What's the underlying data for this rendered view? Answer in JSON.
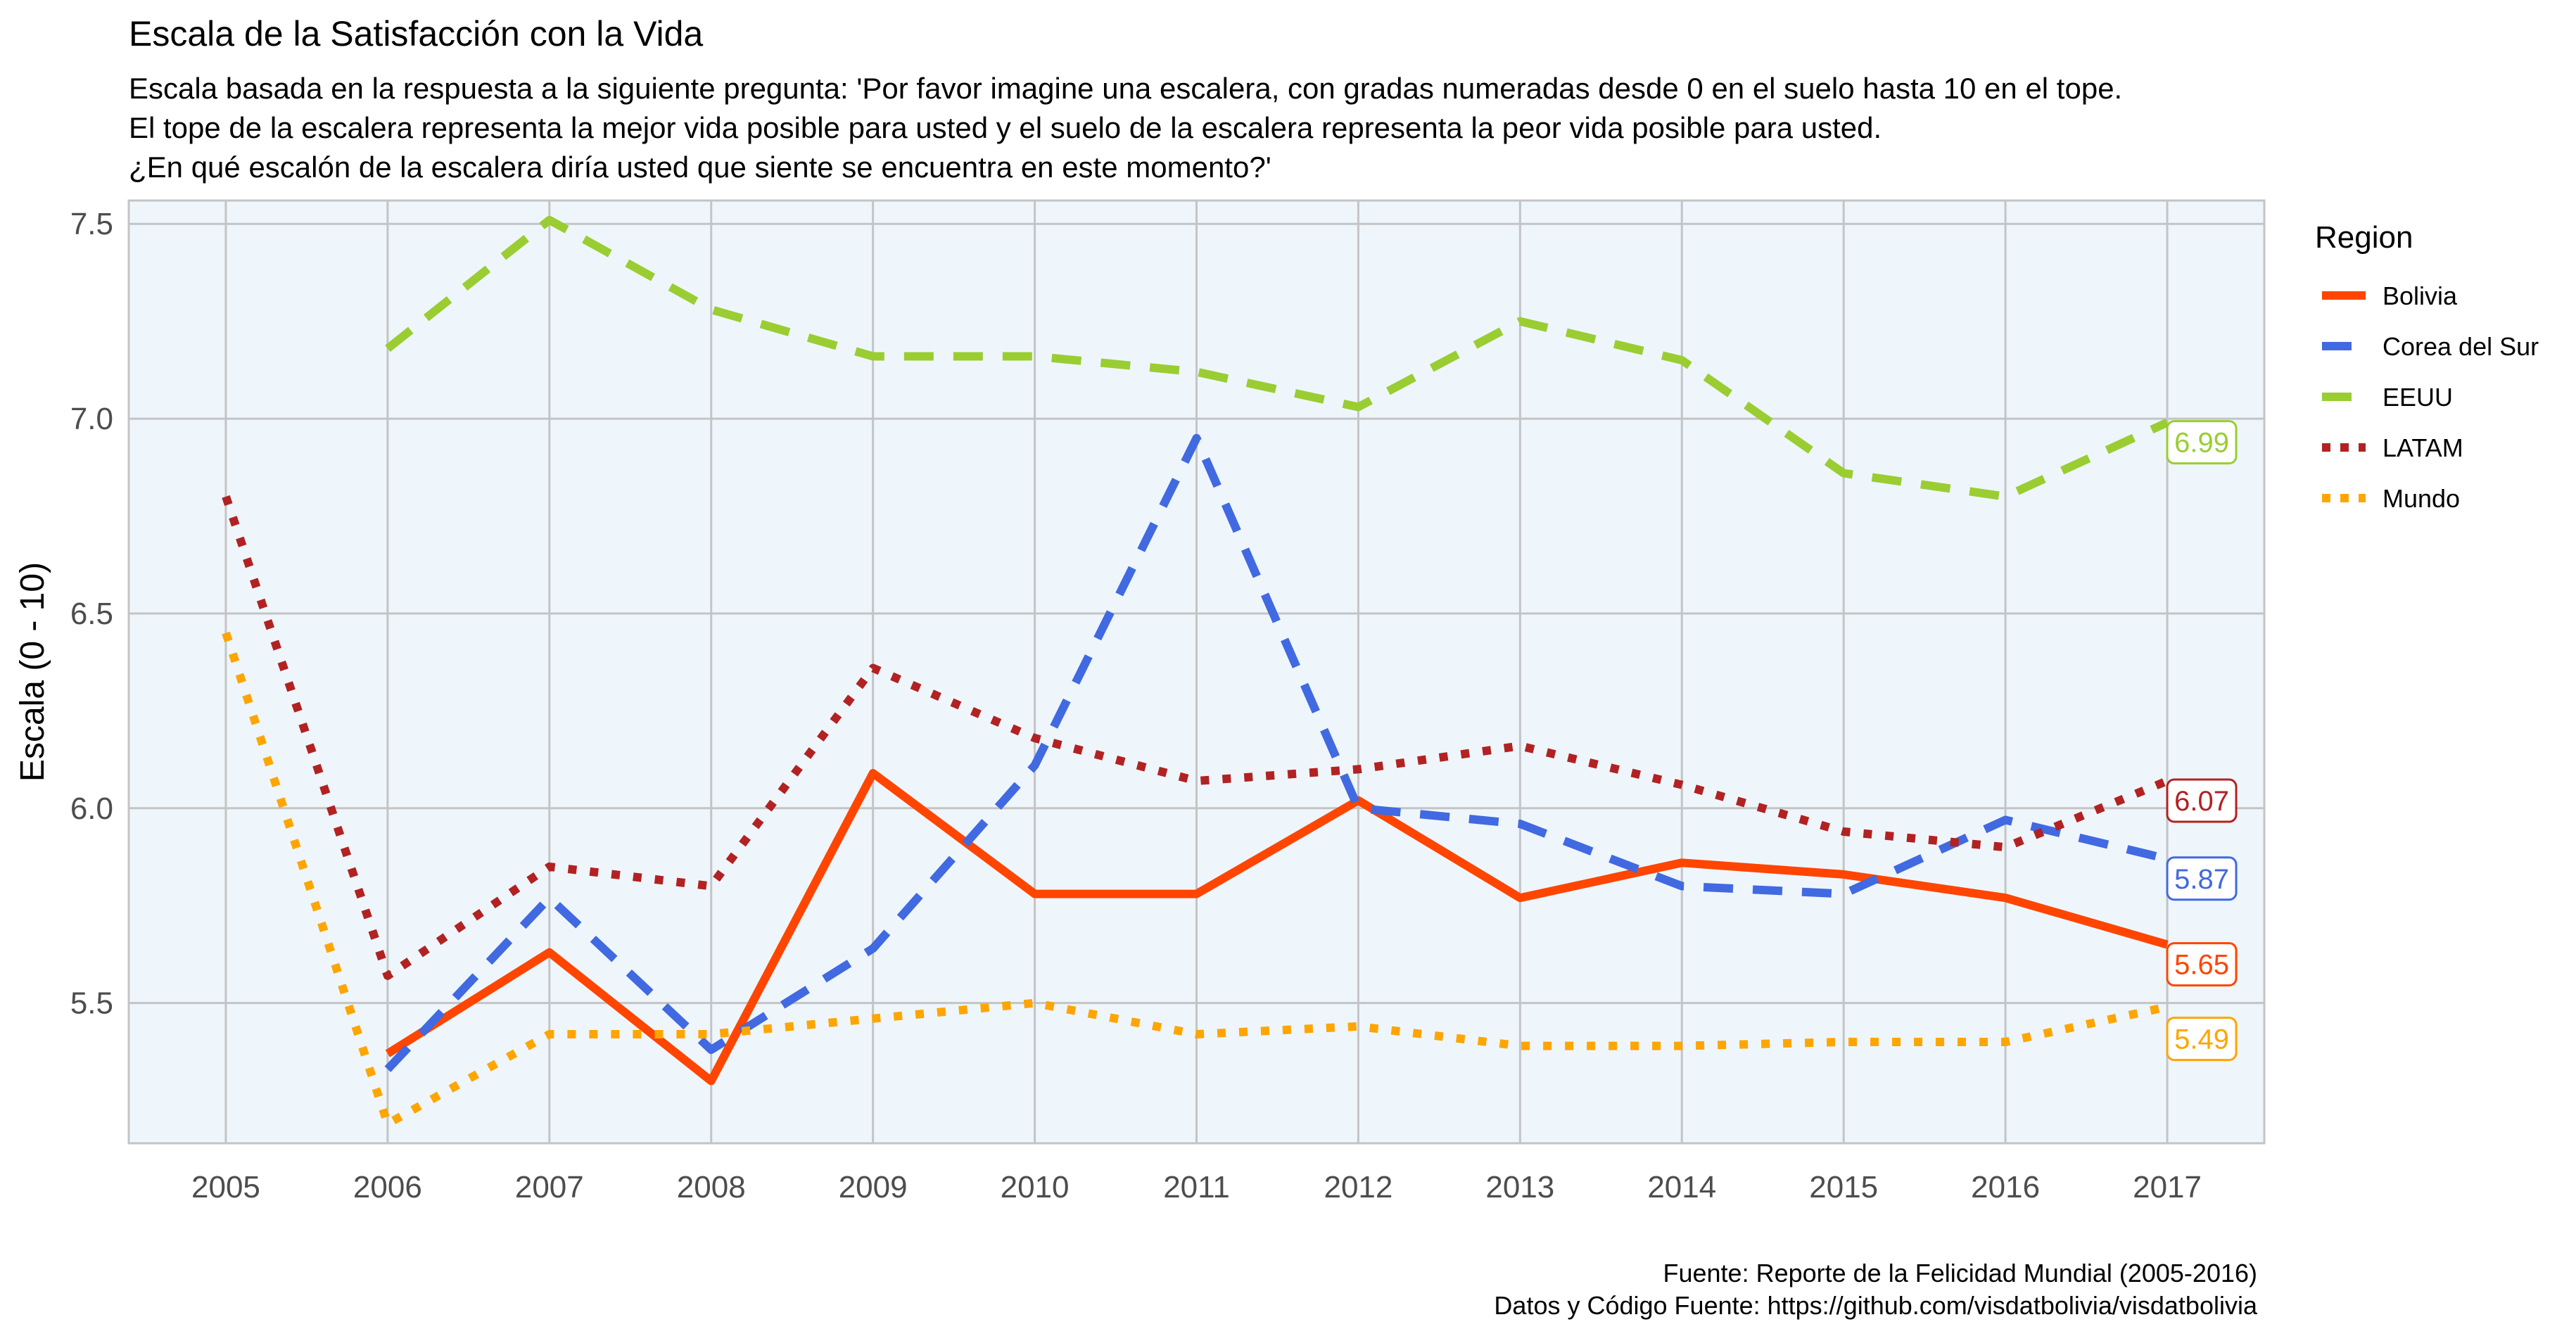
{
  "chart_data": {
    "type": "line",
    "title": "Escala de la Satisfacción con la Vida",
    "subtitle": [
      "Escala basada en la respuesta a la siguiente pregunta: 'Por favor imagine una escalera, con gradas numeradas desde 0 en el suelo hasta 10 en el tope.",
      "El tope de la escalera representa la mejor vida posible para usted y el suelo de la escalera representa la peor vida posible para usted.",
      "¿En qué escalón de la escalera diría usted que siente se encuentra en este momento?'"
    ],
    "xlabel": "",
    "ylabel": "Escala (0 - 10)",
    "x": [
      2005,
      2006,
      2007,
      2008,
      2009,
      2010,
      2011,
      2012,
      2013,
      2014,
      2015,
      2016,
      2017
    ],
    "xlim": [
      2004.4,
      2017.6
    ],
    "ylim": [
      5.14,
      7.56
    ],
    "yticks": [
      5.5,
      6.0,
      6.5,
      7.0,
      7.5
    ],
    "ytick_labels": [
      "5.5",
      "6.0",
      "6.5",
      "7.0",
      "7.5"
    ],
    "grid": true,
    "legend": {
      "title": "Region",
      "position": "right"
    },
    "series": [
      {
        "name": "Bolivia",
        "color": "#FF4500",
        "style": "solid",
        "values": [
          null,
          5.37,
          5.63,
          5.3,
          6.09,
          5.78,
          5.78,
          6.02,
          5.77,
          5.86,
          5.83,
          5.77,
          5.65
        ],
        "end_label": "5.65"
      },
      {
        "name": "Corea del Sur",
        "color": "#4169E1",
        "style": "dashed",
        "values": [
          null,
          5.33,
          5.77,
          5.38,
          5.64,
          6.11,
          6.95,
          6.0,
          5.96,
          5.8,
          5.78,
          5.97,
          5.87
        ],
        "end_label": "5.87"
      },
      {
        "name": "EEUU",
        "color": "#9ACD32",
        "style": "dashed",
        "values": [
          null,
          7.18,
          7.51,
          7.28,
          7.16,
          7.16,
          7.12,
          7.03,
          7.25,
          7.15,
          6.86,
          6.8,
          6.99
        ],
        "end_label": "6.99"
      },
      {
        "name": "LATAM",
        "color": "#B22222",
        "style": "dotted",
        "values": [
          6.8,
          5.57,
          5.85,
          5.8,
          6.36,
          6.18,
          6.07,
          6.1,
          6.16,
          6.06,
          5.94,
          5.9,
          6.07
        ],
        "end_label": "6.07"
      },
      {
        "name": "Mundo",
        "color": "#FFA500",
        "style": "dotted",
        "values": [
          6.45,
          5.19,
          5.42,
          5.42,
          5.46,
          5.5,
          5.42,
          5.44,
          5.39,
          5.39,
          5.4,
          5.4,
          5.49
        ],
        "end_label": "5.49"
      }
    ],
    "caption": [
      "Fuente: Reporte de la Felicidad Mundial (2005-2016)",
      "Datos y Código Fuente: https://github.com/visdatbolivia/visdatbolivia"
    ],
    "colors": {
      "panel_background": "#EEF6FC",
      "grid": "#C4C4C4"
    }
  }
}
